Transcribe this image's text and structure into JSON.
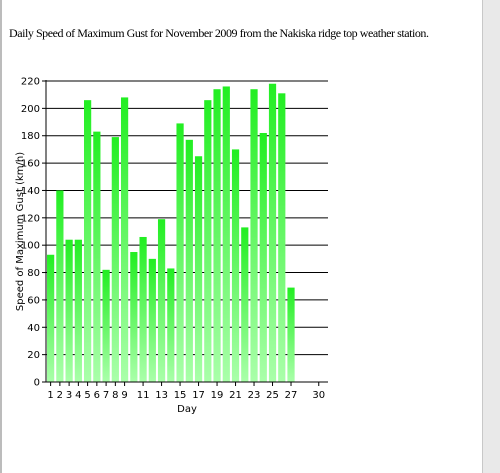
{
  "caption": "Daily Speed of Maximum Gust for November 2009 from the  Nakiska ridge top weather station.",
  "chart_data": {
    "type": "bar",
    "x": [
      1,
      2,
      3,
      4,
      5,
      6,
      7,
      8,
      9,
      10,
      11,
      12,
      13,
      14,
      15,
      16,
      17,
      18,
      19,
      20,
      21,
      22,
      23,
      24,
      25,
      26,
      27
    ],
    "values": [
      93,
      140,
      104,
      104,
      206,
      183,
      82,
      179,
      208,
      95,
      106,
      90,
      119,
      83,
      189,
      177,
      165,
      206,
      214,
      216,
      170,
      113,
      214,
      182,
      218,
      211,
      69
    ],
    "xlabel": "Day",
    "ylabel": "Speed of Maximum Gust (km/h)",
    "ylim": [
      0,
      220
    ],
    "yticks": [
      0,
      20,
      40,
      60,
      80,
      100,
      120,
      140,
      160,
      180,
      200,
      220
    ],
    "xlim": [
      0.5,
      31
    ],
    "xtick_labels": [
      "1",
      "2",
      "3",
      "4",
      "5",
      "6",
      "7",
      "8",
      "9",
      "11",
      "13",
      "15",
      "17",
      "19",
      "21",
      "23",
      "25",
      "27",
      "30"
    ],
    "xtick_positions": [
      1,
      2,
      3,
      4,
      5,
      6,
      7,
      8,
      9,
      11,
      13,
      15,
      17,
      19,
      21,
      23,
      25,
      27,
      30
    ],
    "grid": "horizontal",
    "colors": {
      "bar_top": "#22ee22",
      "bar_bottom": "#aaffaa",
      "grid": "#000000"
    }
  }
}
